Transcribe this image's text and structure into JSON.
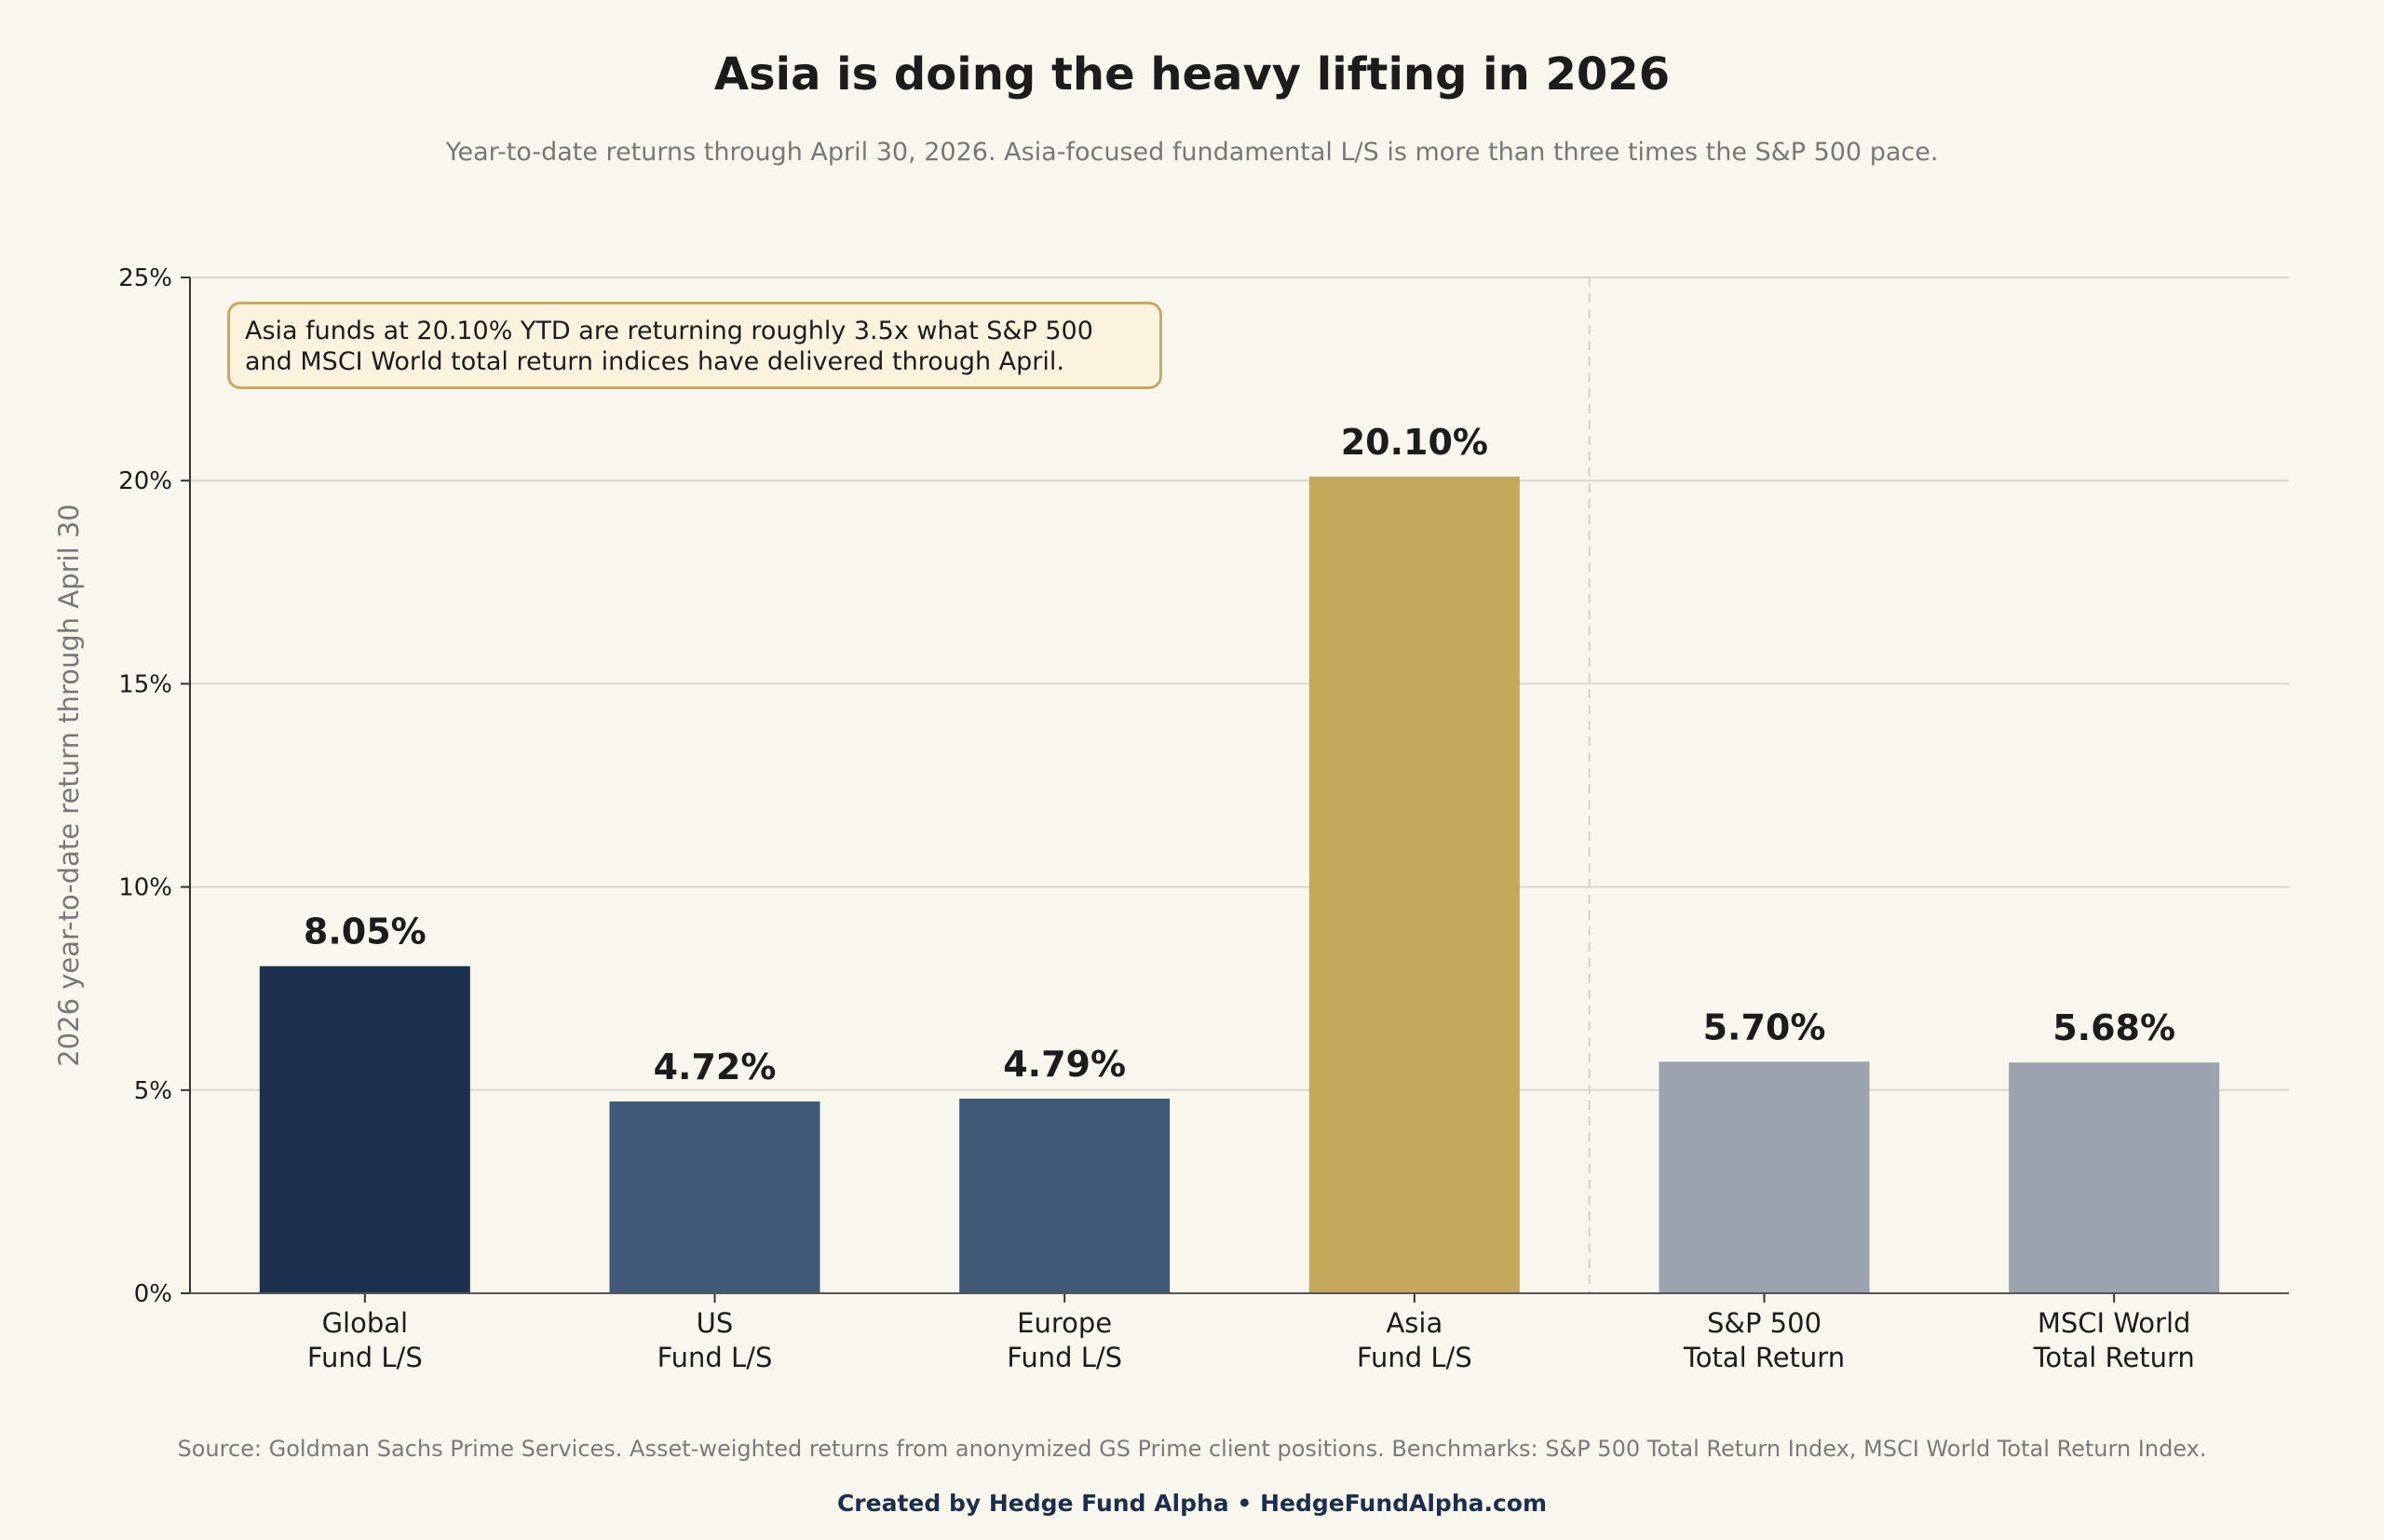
{
  "title": "Asia is doing the heavy lifting in 2026",
  "subtitle": "Year-to-date returns through April 30, 2026. Asia-focused fundamental L/S is more than three times the S&P 500 pace.",
  "annotation": {
    "line1": "Asia funds at 20.10% YTD are returning roughly 3.5x what S&P 500",
    "line2": "and MSCI World total return indices have delivered through April."
  },
  "source": "Source: Goldman Sachs Prime Services. Asset-weighted returns from anonymized GS Prime client positions. Benchmarks: S&P 500 Total Return Index, MSCI World Total Return Index.",
  "credit": "Created by Hedge Fund Alpha  •  HedgeFundAlpha.com",
  "colors": {
    "background": "#f9f6ee",
    "global": "#1b314d",
    "regional": "#3f5977",
    "asia": "#c6a85d",
    "benchmark": "#9ba4ae",
    "grid": "#dcd8cd",
    "divider": "#d6d1c6"
  },
  "chart_data": {
    "type": "bar",
    "title": "Asia is doing the heavy lifting in 2026",
    "ylabel": "2026 year-to-date return through April 30",
    "xlabel": "",
    "ylim": [
      0,
      25
    ],
    "yticks": [
      0,
      5,
      10,
      15,
      20,
      25
    ],
    "ytick_labels": [
      "0%",
      "5%",
      "10%",
      "15%",
      "20%",
      "25%"
    ],
    "grid": "horizontal",
    "categories": [
      [
        "Global",
        "Fund L/S"
      ],
      [
        "US",
        "Fund L/S"
      ],
      [
        "Europe",
        "Fund L/S"
      ],
      [
        "Asia",
        "Fund L/S"
      ],
      [
        "S&P 500",
        "Total Return"
      ],
      [
        "MSCI World",
        "Total Return"
      ]
    ],
    "values": [
      8.05,
      4.72,
      4.79,
      20.1,
      5.7,
      5.68
    ],
    "value_labels": [
      "8.05%",
      "4.72%",
      "4.79%",
      "20.10%",
      "5.70%",
      "5.68%"
    ],
    "bar_colors": [
      "#1b314d",
      "#3f5977",
      "#3f5977",
      "#c6a85d",
      "#9ba4ae",
      "#9ba4ae"
    ],
    "divider_after_index": 3
  }
}
